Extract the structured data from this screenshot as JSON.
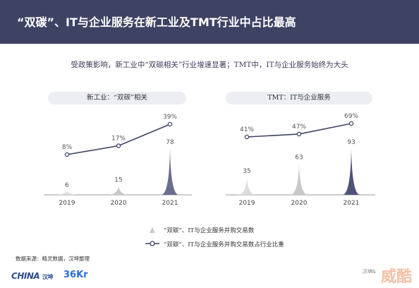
{
  "header": {
    "title": "“双碳”、IT与企业服务在新工业及TMT行业中占比最高"
  },
  "subtitle": "受政策影响，新工业中“双碳相关”行业增速显著；TMT中，IT与企业服务始终为大头",
  "colors": {
    "header_bg": "#3e4263",
    "line": "#3e4263",
    "peak_2019": "#dcdcdc",
    "peak_2020": "#c8c8cc",
    "peak_2021_panel1": "#6a6d8c",
    "peak_2021_panel2": "#4f5278"
  },
  "legend": {
    "amount_label": "“双碳”、IT与企业服务并购交易数",
    "share_label": "“双碳”、IT与企业服务并购交易数占行业比重"
  },
  "footer": {
    "source": "数据来源：精灵数据，汉坤整理",
    "logo_china": "HINA",
    "logo_china_prefix": "C",
    "logo_china_sub": "汉坤",
    "logo_36kr": "36Kr",
    "corner_text": "汉坤&",
    "watermark": "威酷"
  },
  "chart_data": [
    {
      "type": "area",
      "title": "新工业：“双碳”相关",
      "categories": [
        "2019",
        "2020",
        "2021"
      ],
      "series": [
        {
          "name": "“双碳”、IT与企业服务并购交易数",
          "values": [
            6,
            15,
            78
          ],
          "labels": [
            "6",
            "15",
            "78"
          ]
        },
        {
          "name": "“双碳”、IT与企业服务并购交易数占行业比重",
          "values": [
            8,
            17,
            39
          ],
          "labels": [
            "8%",
            "17%",
            "39%"
          ]
        }
      ]
    },
    {
      "type": "area",
      "title": "TMT：IT与企业服务",
      "categories": [
        "2019",
        "2020",
        "2021"
      ],
      "series": [
        {
          "name": "“双碳”、IT与企业服务并购交易数",
          "values": [
            35,
            63,
            93
          ],
          "labels": [
            "35",
            "63",
            "93"
          ]
        },
        {
          "name": "“双碳”、IT与企业服务并购交易数占行业比重",
          "values": [
            41,
            47,
            69
          ],
          "labels": [
            "41%",
            "47%",
            "69%"
          ]
        }
      ]
    }
  ]
}
